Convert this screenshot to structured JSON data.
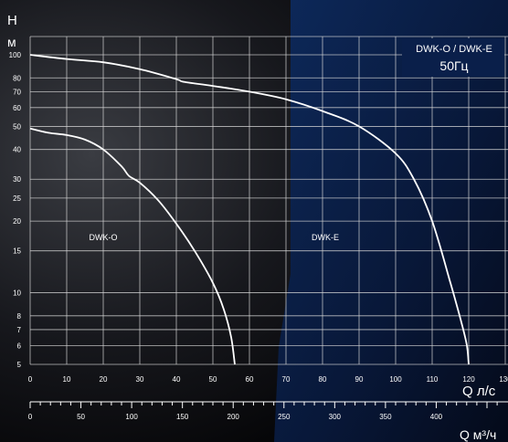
{
  "chart_data": {
    "type": "line",
    "title": "DWK-O / DWK-E",
    "subtitle": "50Гц",
    "ylabel_symbol": "H",
    "ylabel_unit": "м",
    "xlabel": "Q л/с",
    "x2label": "Q м³/ч",
    "y_scale": "log",
    "ylim": [
      5,
      100
    ],
    "xlim": [
      0,
      130
    ],
    "x2lim": [
      0,
      468
    ],
    "grid": true,
    "y_ticks": [
      5,
      6,
      7,
      8,
      10,
      15,
      20,
      25,
      30,
      40,
      50,
      60,
      70,
      80,
      100
    ],
    "x_ticks": [
      0,
      10,
      20,
      30,
      40,
      50,
      60,
      70,
      80,
      90,
      100,
      110,
      120,
      130
    ],
    "x2_ticks": [
      0,
      50,
      100,
      150,
      200,
      250,
      300,
      350,
      400
    ],
    "colors": {
      "background": "#0b0c10",
      "grid": "#d8d8d8",
      "curve": "#ffffff",
      "text": "#ffffff",
      "blue_panel": "#0a1f4a"
    },
    "series": [
      {
        "name": "DWK-O",
        "x": [
          0,
          5,
          10,
          15,
          20,
          25,
          27,
          30,
          35,
          40,
          45,
          50,
          53,
          55,
          56
        ],
        "y": [
          49,
          47,
          46,
          44,
          40,
          34,
          31,
          29,
          24.5,
          19.5,
          15,
          11,
          8.5,
          6.5,
          5
        ]
      },
      {
        "name": "DWK-E",
        "x": [
          0,
          10,
          20,
          30,
          40,
          42,
          50,
          60,
          70,
          80,
          90,
          100,
          105,
          110,
          115,
          118,
          119.5,
          120
        ],
        "y": [
          100,
          96,
          93,
          87,
          79,
          77,
          74,
          70,
          65,
          58,
          50,
          38.5,
          30,
          20,
          11,
          7.5,
          6,
          5
        ]
      }
    ]
  }
}
